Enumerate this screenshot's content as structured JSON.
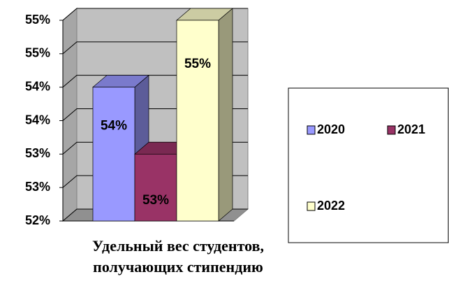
{
  "chart_data": {
    "type": "bar",
    "categories": [
      "Удельный вес студентов, получающих стипендию"
    ],
    "series": [
      {
        "name": "2020",
        "color": "#9999ff",
        "values": [
          54
        ],
        "value_labels": [
          "54%"
        ]
      },
      {
        "name": "2021",
        "color": "#993366",
        "values": [
          53
        ],
        "value_labels": [
          "53%"
        ]
      },
      {
        "name": "2022",
        "color": "#ffffcc",
        "values": [
          55
        ],
        "value_labels": [
          "55%"
        ]
      }
    ],
    "ylim": [
      52,
      55
    ],
    "yticks": [
      {
        "value": 52,
        "label": "52%"
      },
      {
        "value": 52.5,
        "label": "53%"
      },
      {
        "value": 53,
        "label": "53%"
      },
      {
        "value": 53.5,
        "label": "54%"
      },
      {
        "value": 54,
        "label": "54%"
      },
      {
        "value": 54.5,
        "label": "55%"
      },
      {
        "value": 55,
        "label": "55%"
      }
    ],
    "grid": true,
    "legend": "right"
  }
}
